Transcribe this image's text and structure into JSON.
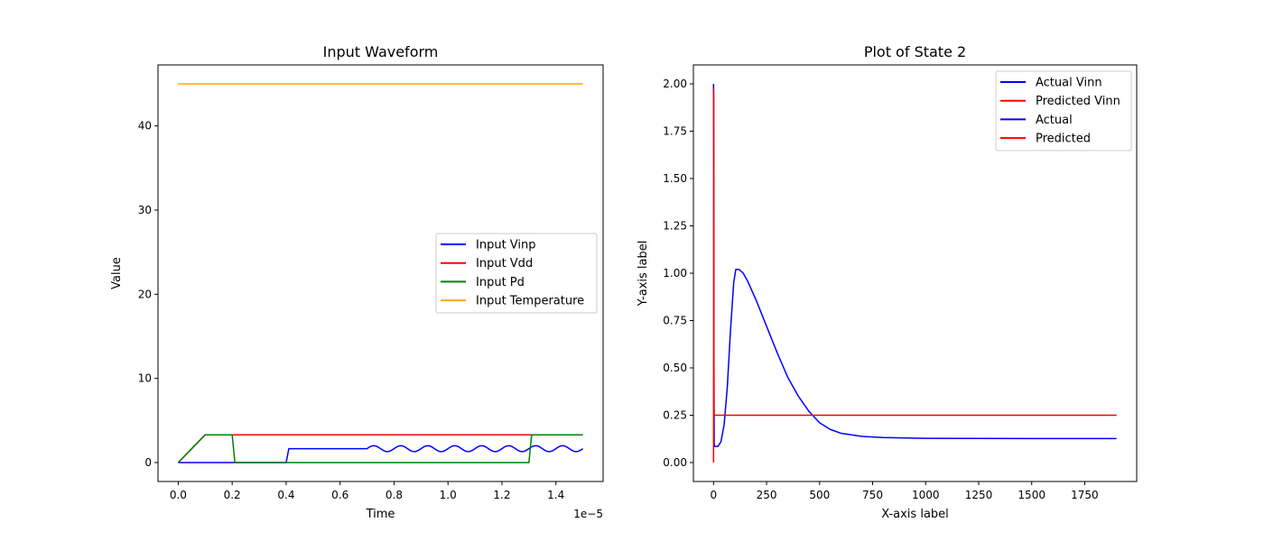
{
  "chart_data": [
    {
      "type": "line",
      "title": "Input Waveform",
      "xlabel": "Time",
      "ylabel": "Value",
      "x_offset_label": "1e−5",
      "xlim": [
        -0.075,
        1.575
      ],
      "ylim": [
        -2.25,
        47.25
      ],
      "xticks": [
        {
          "value": 0.0,
          "label": "0.0"
        },
        {
          "value": 0.2,
          "label": "0.2"
        },
        {
          "value": 0.4,
          "label": "0.4"
        },
        {
          "value": 0.6,
          "label": "0.6"
        },
        {
          "value": 0.8,
          "label": "0.8"
        },
        {
          "value": 1.0,
          "label": "1.0"
        },
        {
          "value": 1.2,
          "label": "1.2"
        },
        {
          "value": 1.4,
          "label": "1.4"
        }
      ],
      "yticks": [
        {
          "value": 0,
          "label": "0"
        },
        {
          "value": 10,
          "label": "10"
        },
        {
          "value": 20,
          "label": "20"
        },
        {
          "value": 30,
          "label": "30"
        },
        {
          "value": 40,
          "label": "40"
        }
      ],
      "legend_position": "center-right",
      "series": [
        {
          "name": "Input Vinp",
          "color": "#0000ff",
          "points": [
            [
              0,
              0
            ],
            [
              0.4,
              0
            ],
            [
              0.41,
              1.65
            ],
            [
              0.7,
              1.65
            ]
          ],
          "oscillation": {
            "start": 0.7,
            "end": 1.5,
            "center": 1.65,
            "amplitude": 0.35,
            "period": 0.1
          }
        },
        {
          "name": "Input Vdd",
          "color": "#ff0000",
          "points": [
            [
              0,
              0
            ],
            [
              0.1,
              3.3
            ],
            [
              1.5,
              3.3
            ]
          ]
        },
        {
          "name": "Input Pd",
          "color": "#008000",
          "points": [
            [
              0,
              0
            ],
            [
              0.1,
              3.3
            ],
            [
              0.2,
              3.3
            ],
            [
              0.21,
              0
            ],
            [
              1.3,
              0
            ],
            [
              1.31,
              3.3
            ],
            [
              1.5,
              3.3
            ]
          ]
        },
        {
          "name": "Input Temperature",
          "color": "#ffa500",
          "points": [
            [
              0,
              45
            ],
            [
              1.5,
              45
            ]
          ]
        }
      ]
    },
    {
      "type": "line",
      "title": "Plot of State 2",
      "xlabel": "X-axis label",
      "ylabel": "Y-axis label",
      "xlim": [
        -95,
        1995
      ],
      "ylim": [
        -0.1,
        2.1
      ],
      "xticks": [
        {
          "value": 0,
          "label": "0"
        },
        {
          "value": 250,
          "label": "250"
        },
        {
          "value": 500,
          "label": "500"
        },
        {
          "value": 750,
          "label": "750"
        },
        {
          "value": 1000,
          "label": "1000"
        },
        {
          "value": 1250,
          "label": "1250"
        },
        {
          "value": 1500,
          "label": "1500"
        },
        {
          "value": 1750,
          "label": "1750"
        }
      ],
      "yticks": [
        {
          "value": 0.0,
          "label": "0.00"
        },
        {
          "value": 0.25,
          "label": "0.25"
        },
        {
          "value": 0.5,
          "label": "0.50"
        },
        {
          "value": 0.75,
          "label": "0.75"
        },
        {
          "value": 1.0,
          "label": "1.00"
        },
        {
          "value": 1.25,
          "label": "1.25"
        },
        {
          "value": 1.5,
          "label": "1.50"
        },
        {
          "value": 1.75,
          "label": "1.75"
        },
        {
          "value": 2.0,
          "label": "2.00"
        }
      ],
      "legend_position": "upper-right",
      "series": [
        {
          "name": "Actual Vinn",
          "color": "#0000ff",
          "points": [
            [
              0,
              2.0
            ],
            [
              1,
              1.5
            ],
            [
              2,
              0.5
            ],
            [
              3,
              0.1
            ],
            [
              5,
              0.085
            ],
            [
              20,
              0.085
            ],
            [
              35,
              0.11
            ],
            [
              50,
              0.2
            ],
            [
              65,
              0.4
            ],
            [
              80,
              0.7
            ],
            [
              95,
              0.95
            ],
            [
              105,
              1.02
            ],
            [
              120,
              1.02
            ],
            [
              140,
              1.0
            ],
            [
              160,
              0.96
            ],
            [
              200,
              0.86
            ],
            [
              250,
              0.72
            ],
            [
              300,
              0.58
            ],
            [
              350,
              0.45
            ],
            [
              400,
              0.35
            ],
            [
              450,
              0.27
            ],
            [
              500,
              0.21
            ],
            [
              550,
              0.175
            ],
            [
              600,
              0.155
            ],
            [
              700,
              0.138
            ],
            [
              800,
              0.132
            ],
            [
              1000,
              0.128
            ],
            [
              1500,
              0.127
            ],
            [
              1900,
              0.127
            ]
          ]
        },
        {
          "name": "Predicted Vinn",
          "color": "#ff0000",
          "points": [
            [
              0,
              0.0
            ],
            [
              1,
              1.97
            ],
            [
              2,
              0.3
            ],
            [
              3,
              0.25
            ],
            [
              1900,
              0.25
            ]
          ]
        },
        {
          "name": "Actual",
          "color": "#0000ff",
          "points": []
        },
        {
          "name": "Predicted",
          "color": "#ff0000",
          "points": []
        }
      ]
    }
  ]
}
